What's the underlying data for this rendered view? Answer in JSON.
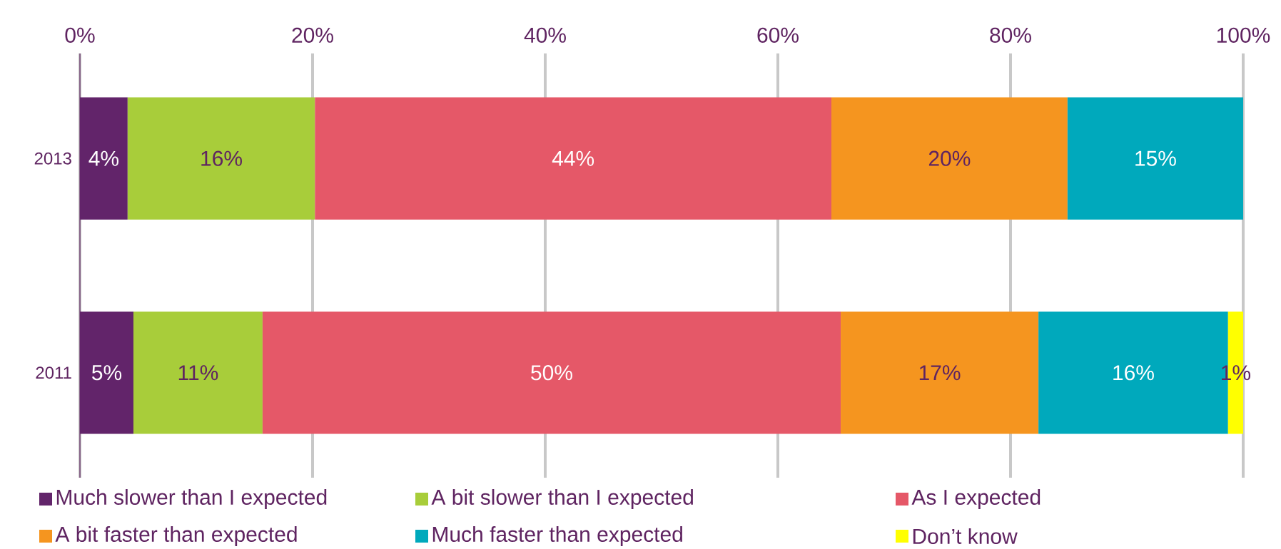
{
  "chart_data": {
    "type": "bar",
    "orientation": "horizontal",
    "stacked": true,
    "categories": [
      "2013",
      "2011"
    ],
    "xlim": [
      0,
      100
    ],
    "xticks": [
      {
        "value": 0,
        "label": "0%"
      },
      {
        "value": 20,
        "label": "20%"
      },
      {
        "value": 40,
        "label": "40%"
      },
      {
        "value": 60,
        "label": "60%"
      },
      {
        "value": 80,
        "label": "80%"
      },
      {
        "value": 100,
        "label": "100%"
      }
    ],
    "grid": "x",
    "legend": "bottom",
    "series": [
      {
        "name": "Much slower than I expected",
        "color": "#62246a",
        "values": [
          4.1,
          4.6
        ],
        "value_labels": [
          "4%",
          "5%"
        ]
      },
      {
        "name": "A bit slower than I expected",
        "color": "#a8cd3a",
        "values": [
          16.1,
          11.1
        ],
        "value_labels": [
          "16%",
          "11%"
        ]
      },
      {
        "name": "As I expected",
        "color": "#e55868",
        "values": [
          44.4,
          49.7
        ],
        "value_labels": [
          "44%",
          "50%"
        ]
      },
      {
        "name": "A bit faster than expected",
        "color": "#f5951f",
        "values": [
          20.3,
          17.0
        ],
        "value_labels": [
          "20%",
          "17%"
        ]
      },
      {
        "name": "Much faster than expected",
        "color": "#00a9bc",
        "values": [
          15.1,
          16.3
        ],
        "value_labels": [
          "15%",
          "16%"
        ]
      },
      {
        "name": "Don’t know",
        "color": "#ffff00",
        "values": [
          null,
          1.3
        ],
        "value_labels": [
          null,
          "1%"
        ]
      }
    ]
  }
}
